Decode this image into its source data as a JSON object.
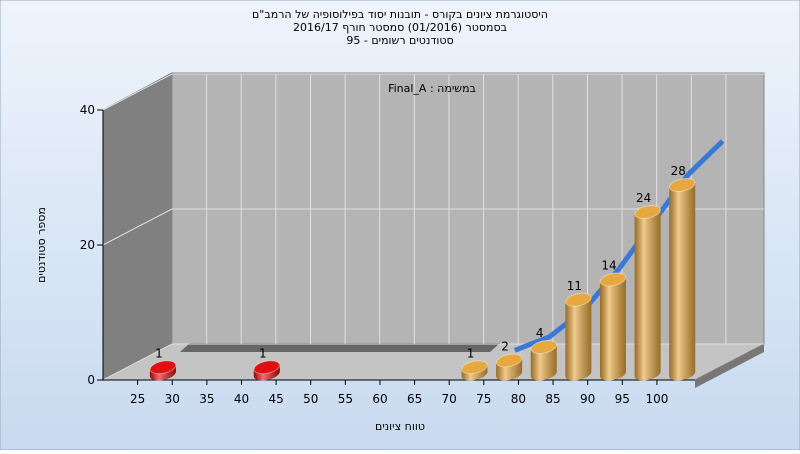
{
  "chart_data": {
    "type": "bar",
    "title": [
      "היסטוגרמת ציונים בקורס - תובנות יסוד בפילוסופיה של הרמב\"ם",
      "בסמסטר  (01/2016)  סמסטר חורף  2016/17",
      "סטודנטים רשומים - 95"
    ],
    "annotation": "Final_A : במשימה",
    "x_label": "טווח ציונים",
    "y_label": "מספר סטודנטים",
    "x": [
      25,
      40,
      70,
      75,
      80,
      85,
      90,
      95,
      100
    ],
    "values": [
      1,
      1,
      1,
      2,
      4,
      11,
      14,
      24,
      28
    ],
    "colors": [
      "#e01010",
      "#e01010",
      "#e8a840",
      "#e8a840",
      "#e8a840",
      "#e8a840",
      "#e8a840",
      "#e8a840",
      "#e8a840"
    ],
    "curve": {
      "color": "#3a78d8",
      "x": [
        75,
        80,
        85,
        90,
        95,
        100,
        105
      ],
      "values": [
        2,
        4,
        8,
        14,
        21,
        28,
        33
      ]
    },
    "xlim": [
      20,
      105.5
    ],
    "xticks": [
      25,
      30,
      35,
      40,
      45,
      50,
      55,
      60,
      65,
      70,
      75,
      80,
      85,
      90,
      95,
      100
    ],
    "ylim": [
      0,
      40
    ],
    "yticks": [
      0,
      20,
      40
    ],
    "grid": true
  }
}
